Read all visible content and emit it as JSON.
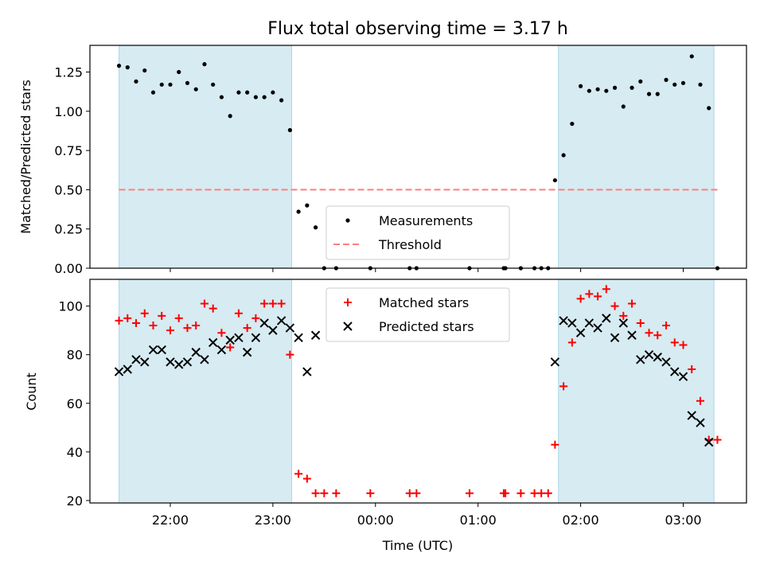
{
  "chart_data": [
    {
      "type": "scatter",
      "title": "Flux total observing time = 3.17 h",
      "ylabel": "Matched/Predicted stars",
      "ylim": [
        0,
        1.42
      ],
      "yticks": [
        0.0,
        0.25,
        0.5,
        0.75,
        1.0,
        1.25
      ],
      "ytick_labels": [
        "0.00",
        "0.25",
        "0.50",
        "0.75",
        "1.00",
        "1.25"
      ],
      "shaded_spans": [
        [
          "21:30",
          "23:11"
        ],
        [
          "01:47",
          "03:18"
        ]
      ],
      "legend_position": "lower-center",
      "series": [
        {
          "name": "Measurements",
          "color": "#000000",
          "marker": "dot",
          "points": [
            [
              "21:30",
              1.29
            ],
            [
              "21:35",
              1.28
            ],
            [
              "21:40",
              1.19
            ],
            [
              "21:45",
              1.26
            ],
            [
              "21:50",
              1.12
            ],
            [
              "21:55",
              1.17
            ],
            [
              "22:00",
              1.17
            ],
            [
              "22:05",
              1.25
            ],
            [
              "22:10",
              1.18
            ],
            [
              "22:15",
              1.14
            ],
            [
              "22:20",
              1.3
            ],
            [
              "22:25",
              1.17
            ],
            [
              "22:30",
              1.09
            ],
            [
              "22:35",
              0.97
            ],
            [
              "22:40",
              1.12
            ],
            [
              "22:45",
              1.12
            ],
            [
              "22:50",
              1.09
            ],
            [
              "22:55",
              1.09
            ],
            [
              "23:00",
              1.12
            ],
            [
              "23:05",
              1.07
            ],
            [
              "23:10",
              0.88
            ],
            [
              "23:15",
              0.36
            ],
            [
              "23:20",
              0.4
            ],
            [
              "23:25",
              0.26
            ],
            [
              "23:30",
              0.0
            ],
            [
              "23:37",
              0.0
            ],
            [
              "23:57",
              0.0
            ],
            [
              "00:20",
              0.0
            ],
            [
              "00:24",
              0.0
            ],
            [
              "00:55",
              0.0
            ],
            [
              "01:15",
              0.0
            ],
            [
              "01:16",
              0.0
            ],
            [
              "01:25",
              0.0
            ],
            [
              "01:33",
              0.0
            ],
            [
              "01:37",
              0.0
            ],
            [
              "01:41",
              0.0
            ],
            [
              "01:45",
              0.56
            ],
            [
              "01:50",
              0.72
            ],
            [
              "01:55",
              0.92
            ],
            [
              "02:00",
              1.16
            ],
            [
              "02:05",
              1.13
            ],
            [
              "02:10",
              1.14
            ],
            [
              "02:15",
              1.13
            ],
            [
              "02:20",
              1.15
            ],
            [
              "02:25",
              1.03
            ],
            [
              "02:30",
              1.15
            ],
            [
              "02:35",
              1.19
            ],
            [
              "02:40",
              1.11
            ],
            [
              "02:45",
              1.11
            ],
            [
              "02:50",
              1.2
            ],
            [
              "02:55",
              1.17
            ],
            [
              "03:00",
              1.18
            ],
            [
              "03:05",
              1.35
            ],
            [
              "03:10",
              1.17
            ],
            [
              "03:15",
              1.02
            ],
            [
              "03:20",
              0.0
            ]
          ]
        },
        {
          "name": "Threshold",
          "color": "#ff7f7f",
          "style": "dashed",
          "points": [
            [
              "21:30",
              0.5
            ],
            [
              "03:20",
              0.5
            ]
          ]
        }
      ]
    },
    {
      "type": "scatter",
      "xlabel": "Time (UTC)",
      "ylabel": "Count",
      "ylim": [
        19,
        111
      ],
      "yticks": [
        20,
        40,
        60,
        80,
        100
      ],
      "ytick_labels": [
        "20",
        "40",
        "60",
        "80",
        "100"
      ],
      "xticks": [
        "22:00",
        "23:00",
        "00:00",
        "01:00",
        "02:00",
        "03:00"
      ],
      "shaded_spans": [
        [
          "21:30",
          "23:11"
        ],
        [
          "01:47",
          "03:18"
        ]
      ],
      "legend_position": "top-center",
      "series": [
        {
          "name": "Matched stars",
          "color": "#ff0000",
          "marker": "plus",
          "points": [
            [
              "21:30",
              94
            ],
            [
              "21:35",
              95
            ],
            [
              "21:40",
              93
            ],
            [
              "21:45",
              97
            ],
            [
              "21:50",
              92
            ],
            [
              "21:55",
              96
            ],
            [
              "22:00",
              90
            ],
            [
              "22:05",
              95
            ],
            [
              "22:10",
              91
            ],
            [
              "22:15",
              92
            ],
            [
              "22:20",
              101
            ],
            [
              "22:25",
              99
            ],
            [
              "22:30",
              89
            ],
            [
              "22:35",
              83
            ],
            [
              "22:40",
              97
            ],
            [
              "22:45",
              91
            ],
            [
              "22:50",
              95
            ],
            [
              "22:55",
              101
            ],
            [
              "23:00",
              101
            ],
            [
              "23:05",
              101
            ],
            [
              "23:10",
              80
            ],
            [
              "23:15",
              31
            ],
            [
              "23:20",
              29
            ],
            [
              "23:25",
              23
            ],
            [
              "23:30",
              23
            ],
            [
              "23:37",
              23
            ],
            [
              "23:57",
              23
            ],
            [
              "00:20",
              23
            ],
            [
              "00:24",
              23
            ],
            [
              "00:55",
              23
            ],
            [
              "01:15",
              23
            ],
            [
              "01:16",
              23
            ],
            [
              "01:25",
              23
            ],
            [
              "01:33",
              23
            ],
            [
              "01:37",
              23
            ],
            [
              "01:41",
              23
            ],
            [
              "01:45",
              43
            ],
            [
              "01:50",
              67
            ],
            [
              "01:55",
              85
            ],
            [
              "02:00",
              103
            ],
            [
              "02:05",
              105
            ],
            [
              "02:10",
              104
            ],
            [
              "02:15",
              107
            ],
            [
              "02:20",
              100
            ],
            [
              "02:25",
              96
            ],
            [
              "02:30",
              101
            ],
            [
              "02:35",
              93
            ],
            [
              "02:40",
              89
            ],
            [
              "02:45",
              88
            ],
            [
              "02:50",
              92
            ],
            [
              "02:55",
              85
            ],
            [
              "03:00",
              84
            ],
            [
              "03:05",
              74
            ],
            [
              "03:10",
              61
            ],
            [
              "03:15",
              45
            ],
            [
              "03:20",
              45
            ]
          ]
        },
        {
          "name": "Predicted stars",
          "color": "#000000",
          "marker": "x",
          "points": [
            [
              "21:30",
              73
            ],
            [
              "21:35",
              74
            ],
            [
              "21:40",
              78
            ],
            [
              "21:45",
              77
            ],
            [
              "21:50",
              82
            ],
            [
              "21:55",
              82
            ],
            [
              "22:00",
              77
            ],
            [
              "22:05",
              76
            ],
            [
              "22:10",
              77
            ],
            [
              "22:15",
              81
            ],
            [
              "22:20",
              78
            ],
            [
              "22:25",
              85
            ],
            [
              "22:30",
              82
            ],
            [
              "22:35",
              86
            ],
            [
              "22:40",
              87
            ],
            [
              "22:45",
              81
            ],
            [
              "22:50",
              87
            ],
            [
              "22:55",
              93
            ],
            [
              "23:00",
              90
            ],
            [
              "23:05",
              94
            ],
            [
              "23:10",
              91
            ],
            [
              "23:15",
              87
            ],
            [
              "23:20",
              73
            ],
            [
              "23:25",
              88
            ],
            [
              "01:45",
              77
            ],
            [
              "01:50",
              94
            ],
            [
              "01:55",
              93
            ],
            [
              "02:00",
              89
            ],
            [
              "02:05",
              93
            ],
            [
              "02:10",
              91
            ],
            [
              "02:15",
              95
            ],
            [
              "02:20",
              87
            ],
            [
              "02:25",
              93
            ],
            [
              "02:30",
              88
            ],
            [
              "02:35",
              78
            ],
            [
              "02:40",
              80
            ],
            [
              "02:45",
              79
            ],
            [
              "02:50",
              77
            ],
            [
              "02:55",
              73
            ],
            [
              "03:00",
              71
            ],
            [
              "03:05",
              55
            ],
            [
              "03:10",
              52
            ],
            [
              "03:15",
              44
            ]
          ]
        }
      ]
    }
  ]
}
